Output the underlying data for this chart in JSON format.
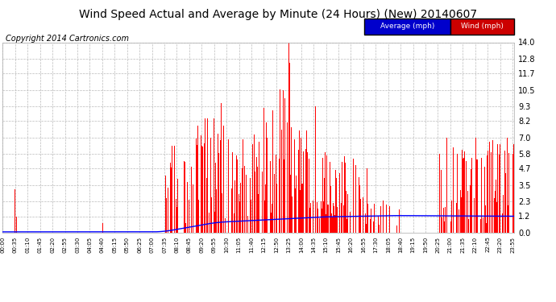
{
  "title": "Wind Speed Actual and Average by Minute (24 Hours) (New) 20140607",
  "copyright": "Copyright 2014 Cartronics.com",
  "legend_average": "Average (mph)",
  "legend_wind": "Wind (mph)",
  "legend_average_bg": "#0000cc",
  "legend_wind_bg": "#cc0000",
  "legend_text_color": "#ffffff",
  "title_fontsize": 10,
  "copyright_fontsize": 7,
  "yticks": [
    0.0,
    1.2,
    2.3,
    3.5,
    4.7,
    5.8,
    7.0,
    8.2,
    9.3,
    10.5,
    11.7,
    12.8,
    14.0
  ],
  "ymax": 14.0,
  "ymin": 0.0,
  "bar_color": "#ff0000",
  "line_color": "#0000ff",
  "background_color": "#ffffff",
  "grid_color": "#bbbbbb",
  "num_minutes": 1440,
  "tick_interval": 35
}
